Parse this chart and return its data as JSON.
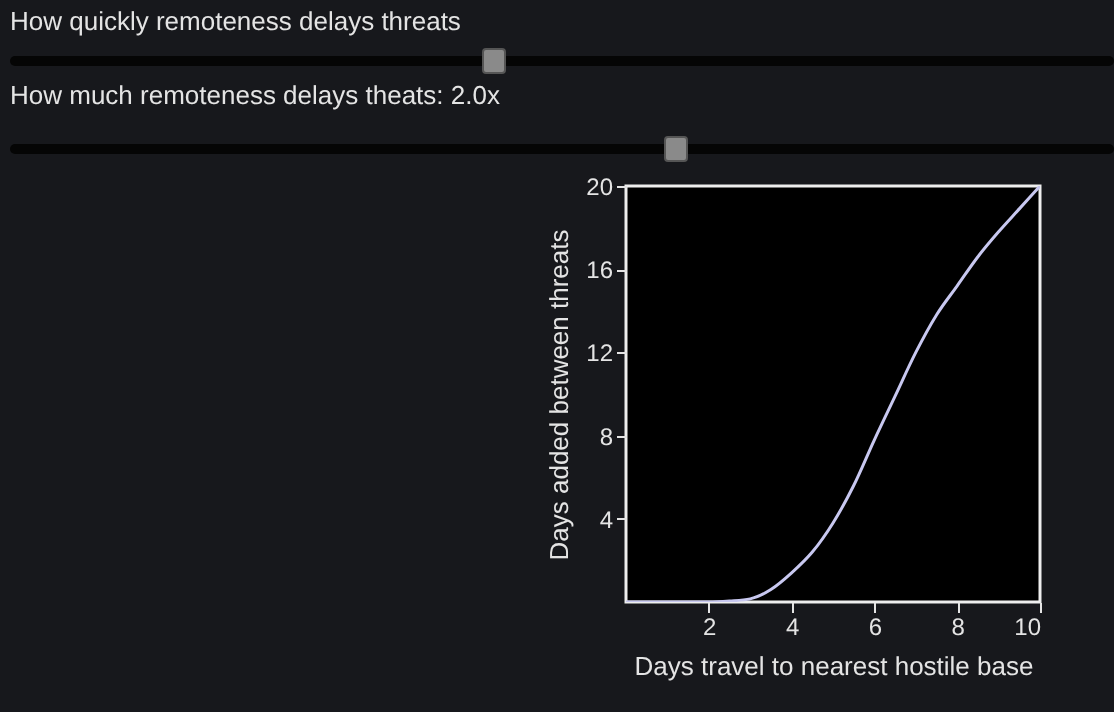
{
  "chart_data": {
    "type": "line",
    "xlabel": "Days travel to nearest hostile base",
    "ylabel": "Days added between threats",
    "annotations": [
      "How quickly remoteness delays threats",
      "How much remoteness delays theats: 2.0x"
    ],
    "x": [
      0,
      1,
      2,
      2.5,
      3,
      3.5,
      4,
      4.5,
      5,
      5.5,
      6,
      6.5,
      7,
      7.5,
      8,
      8.5,
      9,
      9.5,
      10
    ],
    "series": [
      {
        "color": "#c8c8f0",
        "values": [
          0,
          0,
          0,
          0.05,
          0.15,
          0.6,
          1.4,
          2.4,
          3.8,
          5.6,
          7.8,
          9.9,
          12,
          13.8,
          15.2,
          16.6,
          17.8,
          18.9,
          20
        ]
      }
    ],
    "xlim": [
      0,
      10
    ],
    "ylim": [
      0,
      20
    ],
    "xticks": [
      2,
      4,
      6,
      8,
      10
    ],
    "yticks": [
      4,
      8,
      12,
      16,
      20
    ],
    "grid": false,
    "legend": false,
    "marker": "none",
    "line_style": "solid"
  }
}
